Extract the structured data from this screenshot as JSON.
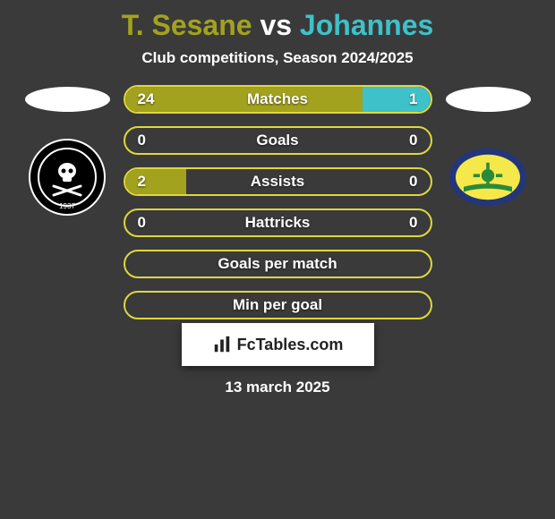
{
  "title": {
    "player1": "T. Sesane",
    "vs": " vs ",
    "player2": "Johannes",
    "player1_color": "#a2a21f",
    "player2_color": "#3ec1c9"
  },
  "subtitle": "Club competitions, Season 2024/2025",
  "colors": {
    "bg": "#3a3a3a",
    "row_border": "#ded73d",
    "left_bar": "#a2a21f",
    "right_bar": "#3ec1c9",
    "neutral_border": "#c0b93a"
  },
  "left_club": {
    "name": "Orlando Pirates",
    "year": "1937",
    "badge_bg": "#000000",
    "badge_ring": "#ffffff"
  },
  "right_club": {
    "name": "Mamelodi Sundowns",
    "badge_bg": "#24367a",
    "badge_inner": "#f5e84a",
    "badge_accent": "#2a8a3a"
  },
  "rows": [
    {
      "label": "Matches",
      "left": "24",
      "right": "1",
      "left_pct": 78,
      "right_pct": 22,
      "show_left_fill": true,
      "show_right_fill": true
    },
    {
      "label": "Goals",
      "left": "0",
      "right": "0",
      "left_pct": 0,
      "right_pct": 0,
      "show_left_fill": false,
      "show_right_fill": false
    },
    {
      "label": "Assists",
      "left": "2",
      "right": "0",
      "left_pct": 20,
      "right_pct": 0,
      "show_left_fill": true,
      "show_right_fill": false
    },
    {
      "label": "Hattricks",
      "left": "0",
      "right": "0",
      "left_pct": 0,
      "right_pct": 0,
      "show_left_fill": false,
      "show_right_fill": false
    },
    {
      "label": "Goals per match",
      "left": "",
      "right": "",
      "left_pct": 0,
      "right_pct": 0,
      "show_left_fill": false,
      "show_right_fill": false
    },
    {
      "label": "Min per goal",
      "left": "",
      "right": "",
      "left_pct": 0,
      "right_pct": 0,
      "show_left_fill": false,
      "show_right_fill": false
    }
  ],
  "footer": {
    "brand": "FcTables.com",
    "date": "13 march 2025"
  }
}
